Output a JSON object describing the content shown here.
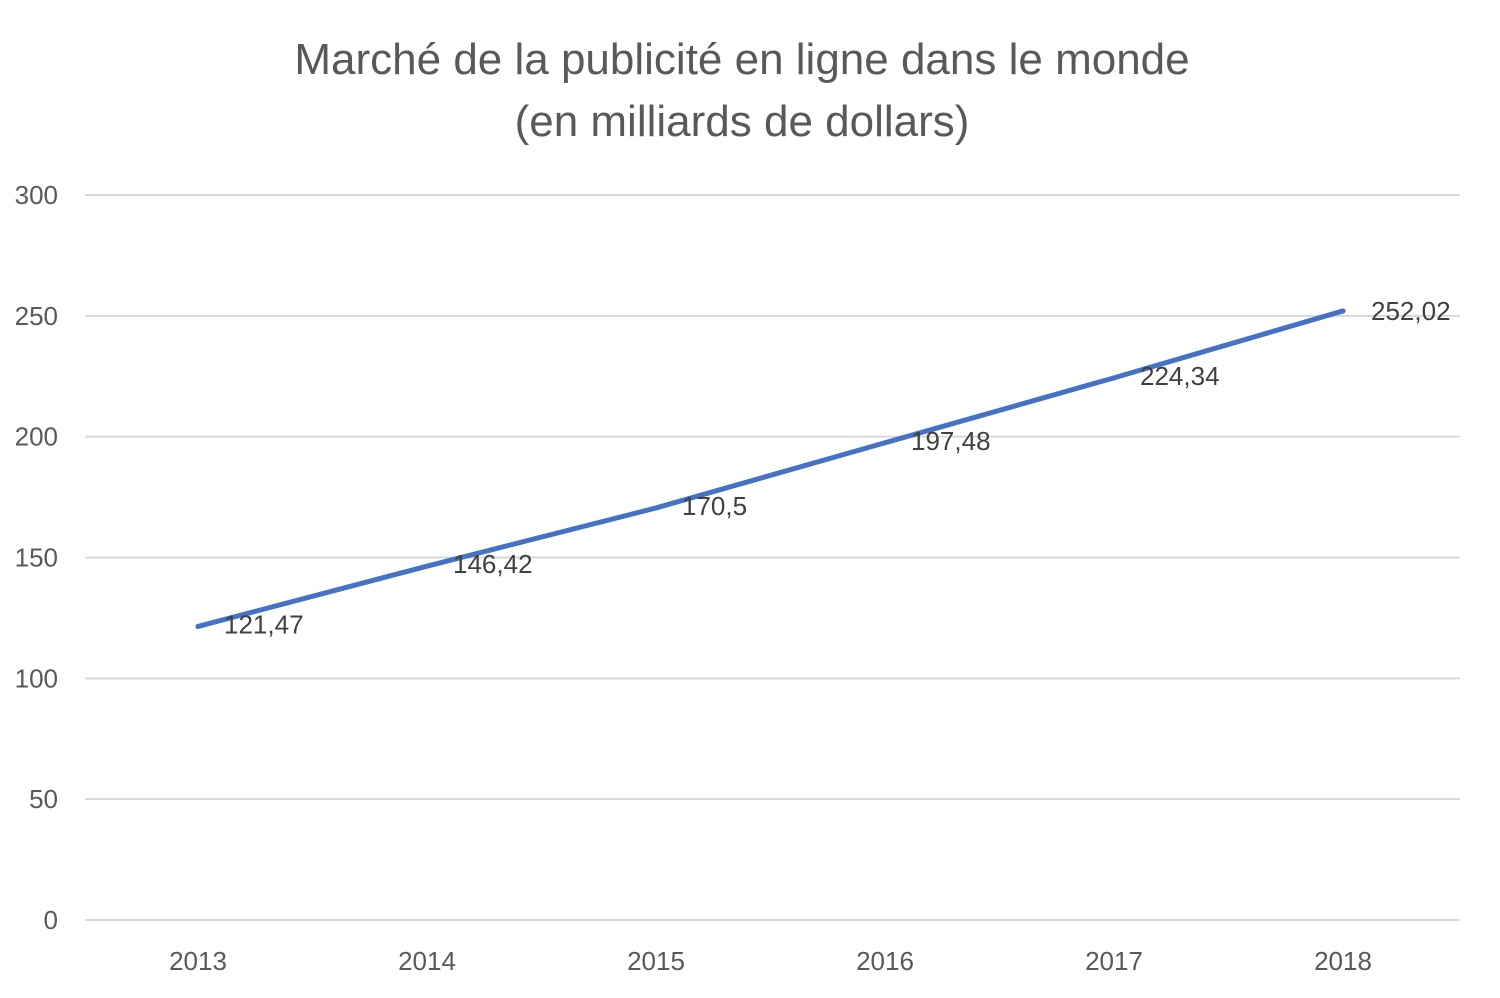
{
  "chart_data": {
    "type": "line",
    "title": "Marché de la publicité en ligne dans le monde",
    "subtitle": "(en milliards de dollars)",
    "xlabel": "",
    "ylabel": "",
    "categories": [
      "2013",
      "2014",
      "2015",
      "2016",
      "2017",
      "2018"
    ],
    "series": [
      {
        "values": [
          121.47,
          146.42,
          170.5,
          197.48,
          224.34,
          252.02
        ],
        "data_labels": [
          "121,47",
          "146,42",
          "170,5",
          "197,48",
          "224,34",
          "252,02"
        ],
        "color": "#4472c4"
      }
    ],
    "ylim": [
      0,
      300
    ],
    "y_ticks": [
      "0",
      "50",
      "100",
      "150",
      "200",
      "250",
      "300"
    ],
    "grid": true,
    "legend": "none"
  }
}
